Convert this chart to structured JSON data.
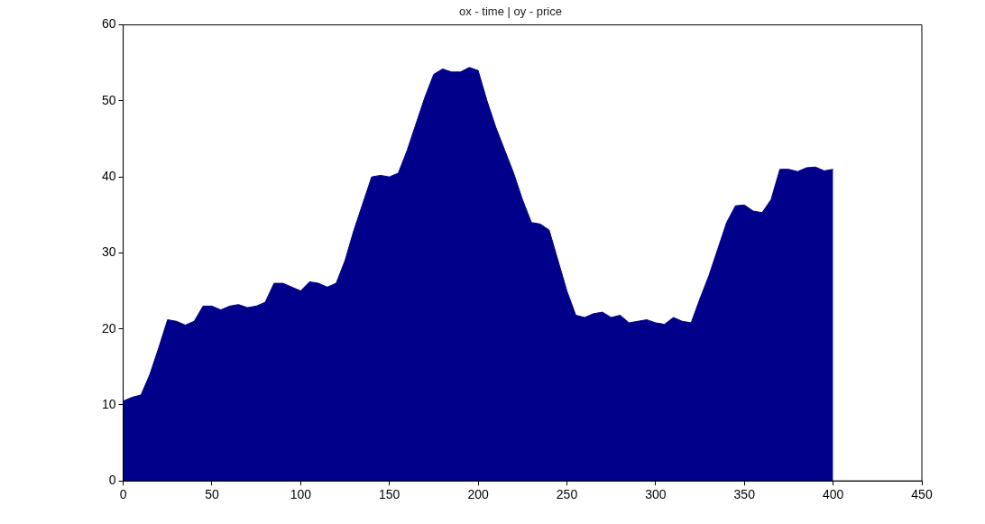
{
  "chart_data": {
    "type": "area",
    "title": "ox - time | oy - price",
    "x": [
      0,
      5,
      10,
      15,
      20,
      25,
      30,
      35,
      40,
      45,
      50,
      55,
      60,
      65,
      70,
      75,
      80,
      85,
      90,
      95,
      100,
      105,
      110,
      115,
      120,
      125,
      130,
      135,
      140,
      145,
      150,
      155,
      160,
      165,
      170,
      175,
      180,
      185,
      190,
      195,
      200,
      205,
      210,
      215,
      220,
      225,
      230,
      235,
      240,
      245,
      250,
      255,
      260,
      265,
      270,
      275,
      280,
      285,
      290,
      295,
      300,
      305,
      310,
      315,
      320,
      325,
      330,
      335,
      340,
      345,
      350,
      355,
      360,
      365,
      370,
      375,
      380,
      385,
      390,
      395,
      400
    ],
    "values": [
      10.5,
      11,
      11.3,
      14,
      17.5,
      21.2,
      21,
      20.5,
      21,
      23,
      23,
      22.5,
      23,
      23.2,
      22.8,
      23,
      23.5,
      26,
      26,
      25.5,
      25,
      26.2,
      26,
      25.5,
      26,
      29,
      33,
      36.5,
      40,
      40.2,
      40,
      40.5,
      43.5,
      47,
      50.5,
      53.5,
      54.2,
      53.8,
      53.8,
      54.4,
      54,
      50,
      46.5,
      43.5,
      40.5,
      37,
      34,
      33.8,
      33,
      29,
      25,
      21.8,
      21.5,
      22,
      22.2,
      21.5,
      21.8,
      20.8,
      21,
      21.2,
      20.8,
      20.6,
      21.5,
      21,
      20.8,
      24,
      27,
      30.5,
      34,
      36.2,
      36.3,
      35.5,
      35.3,
      37,
      41,
      41,
      40.7,
      41.2,
      41.3,
      40.8,
      41
    ],
    "color": "#00008b",
    "xlim": [
      0,
      450
    ],
    "xticks": [
      0,
      50,
      100,
      150,
      200,
      250,
      300,
      350,
      400,
      450
    ],
    "ylim": [
      0,
      60
    ],
    "yticks": [
      0,
      10,
      20,
      30,
      40,
      50,
      60
    ],
    "grid": false,
    "legend": false
  }
}
